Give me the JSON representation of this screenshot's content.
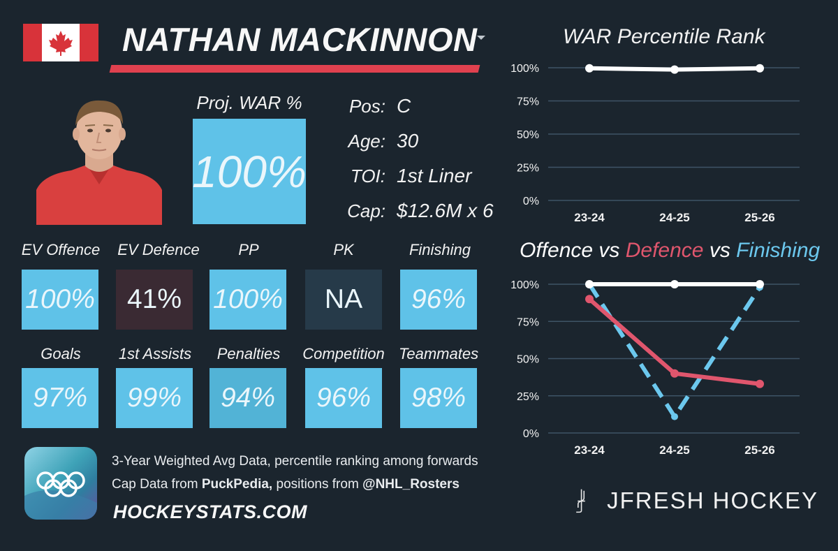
{
  "colors": {
    "background": "#1b252e",
    "accent_red": "#e0414f",
    "box_blue": "#5fc2e8",
    "box_dark": "#3a2a33",
    "box_na": "#263a49",
    "offence": "#ffffff",
    "defence": "#e0566d",
    "finishing": "#6cc8ee"
  },
  "player": {
    "name": "NATHAN MACKINNON",
    "country_flag": "canada-flag-icon",
    "proj_war_label": "Proj. WAR %",
    "proj_war_value": "100%",
    "bio": [
      {
        "key": "Pos:",
        "value": "C"
      },
      {
        "key": "Age:",
        "value": "30"
      },
      {
        "key": "TOI:",
        "value": "1st Liner"
      },
      {
        "key": "Cap:",
        "value": "$12.6M x 6"
      }
    ]
  },
  "stats_row1": [
    {
      "label": "EV Offence",
      "value": "100%",
      "color": "#5fc2e8"
    },
    {
      "label": "EV Defence",
      "value": "41%",
      "color": "#3a2a33"
    },
    {
      "label": "PP",
      "value": "100%",
      "color": "#5fc2e8"
    },
    {
      "label": "PK",
      "value": "NA",
      "color": "#263a49"
    },
    {
      "label": "Finishing",
      "value": "96%",
      "color": "#5fc2e8"
    }
  ],
  "stats_row2": [
    {
      "label": "Goals",
      "value": "97%",
      "color": "#5fc2e8"
    },
    {
      "label": "1st Assists",
      "value": "99%",
      "color": "#5fc2e8"
    },
    {
      "label": "Penalties",
      "value": "94%",
      "color": "#52b3d6"
    },
    {
      "label": "Competition",
      "value": "96%",
      "color": "#5fc2e8"
    },
    {
      "label": "Teammates",
      "value": "98%",
      "color": "#5fc2e8"
    }
  ],
  "footer": {
    "note1": "3-Year Weighted Avg Data, percentile ranking among forwards",
    "note2_prefix": "Cap Data from ",
    "note2_source1": "PuckPedia,",
    "note2_mid": " positions from ",
    "note2_source2": "@NHL_Rosters",
    "site": "HOCKEYSTATS.COM",
    "brand": "JFRESH HOCKEY",
    "olympic_icon": "olympic-rings-icon"
  },
  "chart_data": [
    {
      "type": "line",
      "title": "WAR Percentile Rank",
      "categories": [
        "23-24",
        "24-25",
        "25-26"
      ],
      "yticks": [
        "0%",
        "25%",
        "50%",
        "75%",
        "100%"
      ],
      "ylim": [
        0,
        100
      ],
      "series": [
        {
          "name": "WAR",
          "values": [
            99.6,
            98.6,
            99.6
          ],
          "color": "#ffffff",
          "style": "solid"
        }
      ]
    },
    {
      "type": "line",
      "title_parts": [
        {
          "text": "Offence",
          "color": "#ffffff"
        },
        {
          "text": " vs ",
          "color": "#ffffff"
        },
        {
          "text": "Defence",
          "color": "#e0566d"
        },
        {
          "text": " vs ",
          "color": "#ffffff"
        },
        {
          "text": "Finishing",
          "color": "#6cc8ee"
        }
      ],
      "categories": [
        "23-24",
        "24-25",
        "25-26"
      ],
      "yticks": [
        "0%",
        "25%",
        "50%",
        "75%",
        "100%"
      ],
      "ylim": [
        0,
        100
      ],
      "series": [
        {
          "name": "Offence",
          "values": [
            100,
            100,
            100
          ],
          "color": "#ffffff",
          "style": "solid"
        },
        {
          "name": "Defence",
          "values": [
            90,
            40,
            33
          ],
          "color": "#e0566d",
          "style": "solid"
        },
        {
          "name": "Finishing",
          "values": [
            100,
            11,
            98
          ],
          "color": "#6cc8ee",
          "style": "dashed"
        }
      ]
    }
  ]
}
